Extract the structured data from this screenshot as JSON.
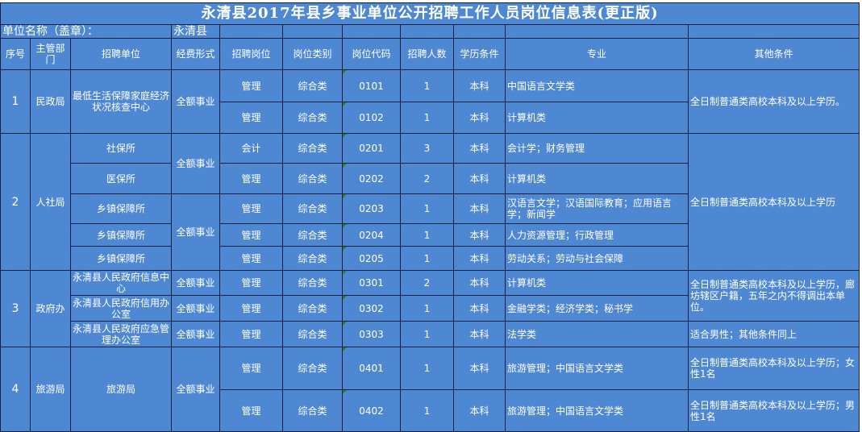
{
  "title": "永清县2017年县乡事业单位公开招聘工作人员岗位信息表(更正版)",
  "unit_label": "单位名称（盖章）：",
  "unit_value": "永清县",
  "headers": [
    "序号",
    "主管部门",
    "招聘单位",
    "经费形式",
    "招聘岗位",
    "岗位类别",
    "岗位代码",
    "招聘人数",
    "学历条件",
    "专业",
    "其他条件"
  ],
  "groups": [
    {
      "seq": "1",
      "dept": "民政局"
    },
    {
      "seq": "2",
      "dept": "人社局"
    },
    {
      "seq": "3",
      "dept": "政府办"
    },
    {
      "seq": "4",
      "dept": "旅游局"
    }
  ],
  "rows": [
    {
      "unit": "最低生活保障家庭经济状况核查中心",
      "funding": "全额事业",
      "post": "管理",
      "category": "综合类",
      "code": "0101",
      "count": "1",
      "edu": "本科",
      "major": "中国语言文学类",
      "other": "全日制普通类高校本科及以上学历。"
    },
    {
      "post": "管理",
      "category": "综合类",
      "code": "0102",
      "count": "1",
      "edu": "本科",
      "major": "计算机类"
    },
    {
      "unit": "社保所",
      "funding": "全额事业",
      "post": "会计",
      "category": "综合类",
      "code": "0201",
      "count": "3",
      "edu": "本科",
      "major": "会计学；财务管理",
      "other": "全日制普通类高校本科及以上学历"
    },
    {
      "unit": "医保所",
      "post": "管理",
      "category": "综合类",
      "code": "0202",
      "count": "2",
      "edu": "本科",
      "major": "计算机类"
    },
    {
      "unit": "乡镇保障所",
      "funding": "全额事业",
      "post": "管理",
      "category": "综合类",
      "code": "0203",
      "count": "1",
      "edu": "本科",
      "major": "汉语言文学；汉语国际教育；应用语言学；新闻学"
    },
    {
      "unit": "乡镇保障所",
      "post": "管理",
      "category": "综合类",
      "code": "0204",
      "count": "1",
      "edu": "本科",
      "major": "人力资源管理；行政管理"
    },
    {
      "unit": "乡镇保障所",
      "post": "管理",
      "category": "综合类",
      "code": "0205",
      "count": "1",
      "edu": "本科",
      "major": "劳动关系；劳动与社会保障"
    },
    {
      "unit": "永清县人民政府信息中心",
      "funding": "全额事业",
      "post": "管理",
      "category": "综合类",
      "code": "0301",
      "count": "2",
      "edu": "本科",
      "major": "计算机类",
      "other": "全日制普通类高校本科及以上学历，廊坊辖区户籍，五年之内不得调出本单位。"
    },
    {
      "unit": "永清县人民政府信用办公室",
      "funding": "全额事业",
      "post": "管理",
      "category": "综合类",
      "code": "0302",
      "count": "1",
      "edu": "本科",
      "major": "金融学类；经济学类；秘书学"
    },
    {
      "unit": "永清县人民政府应急管理办公室",
      "funding": "全额事业",
      "post": "管理",
      "category": "综合类",
      "code": "0303",
      "count": "1",
      "edu": "本科",
      "major": "法学类",
      "other": "适合男性；其他条件同上"
    },
    {
      "unit": "旅游局",
      "funding": "全额事业",
      "post": "管理",
      "category": "综合类",
      "code": "0401",
      "count": "1",
      "edu": "本科",
      "major": "旅游管理；中国语言文学类",
      "other": "全日制普通类高校本科及以上学历；女性1名"
    },
    {
      "post": "管理",
      "category": "综合类",
      "code": "0402",
      "count": "1",
      "edu": "本科",
      "major": "旅游管理；中国语言文学类",
      "other": "全日制普通类高校本科及以上学历；男性1名"
    }
  ],
  "colors": {
    "cell_bg": "#4f88d2",
    "text": "#ffffff",
    "border": "#10213f"
  }
}
